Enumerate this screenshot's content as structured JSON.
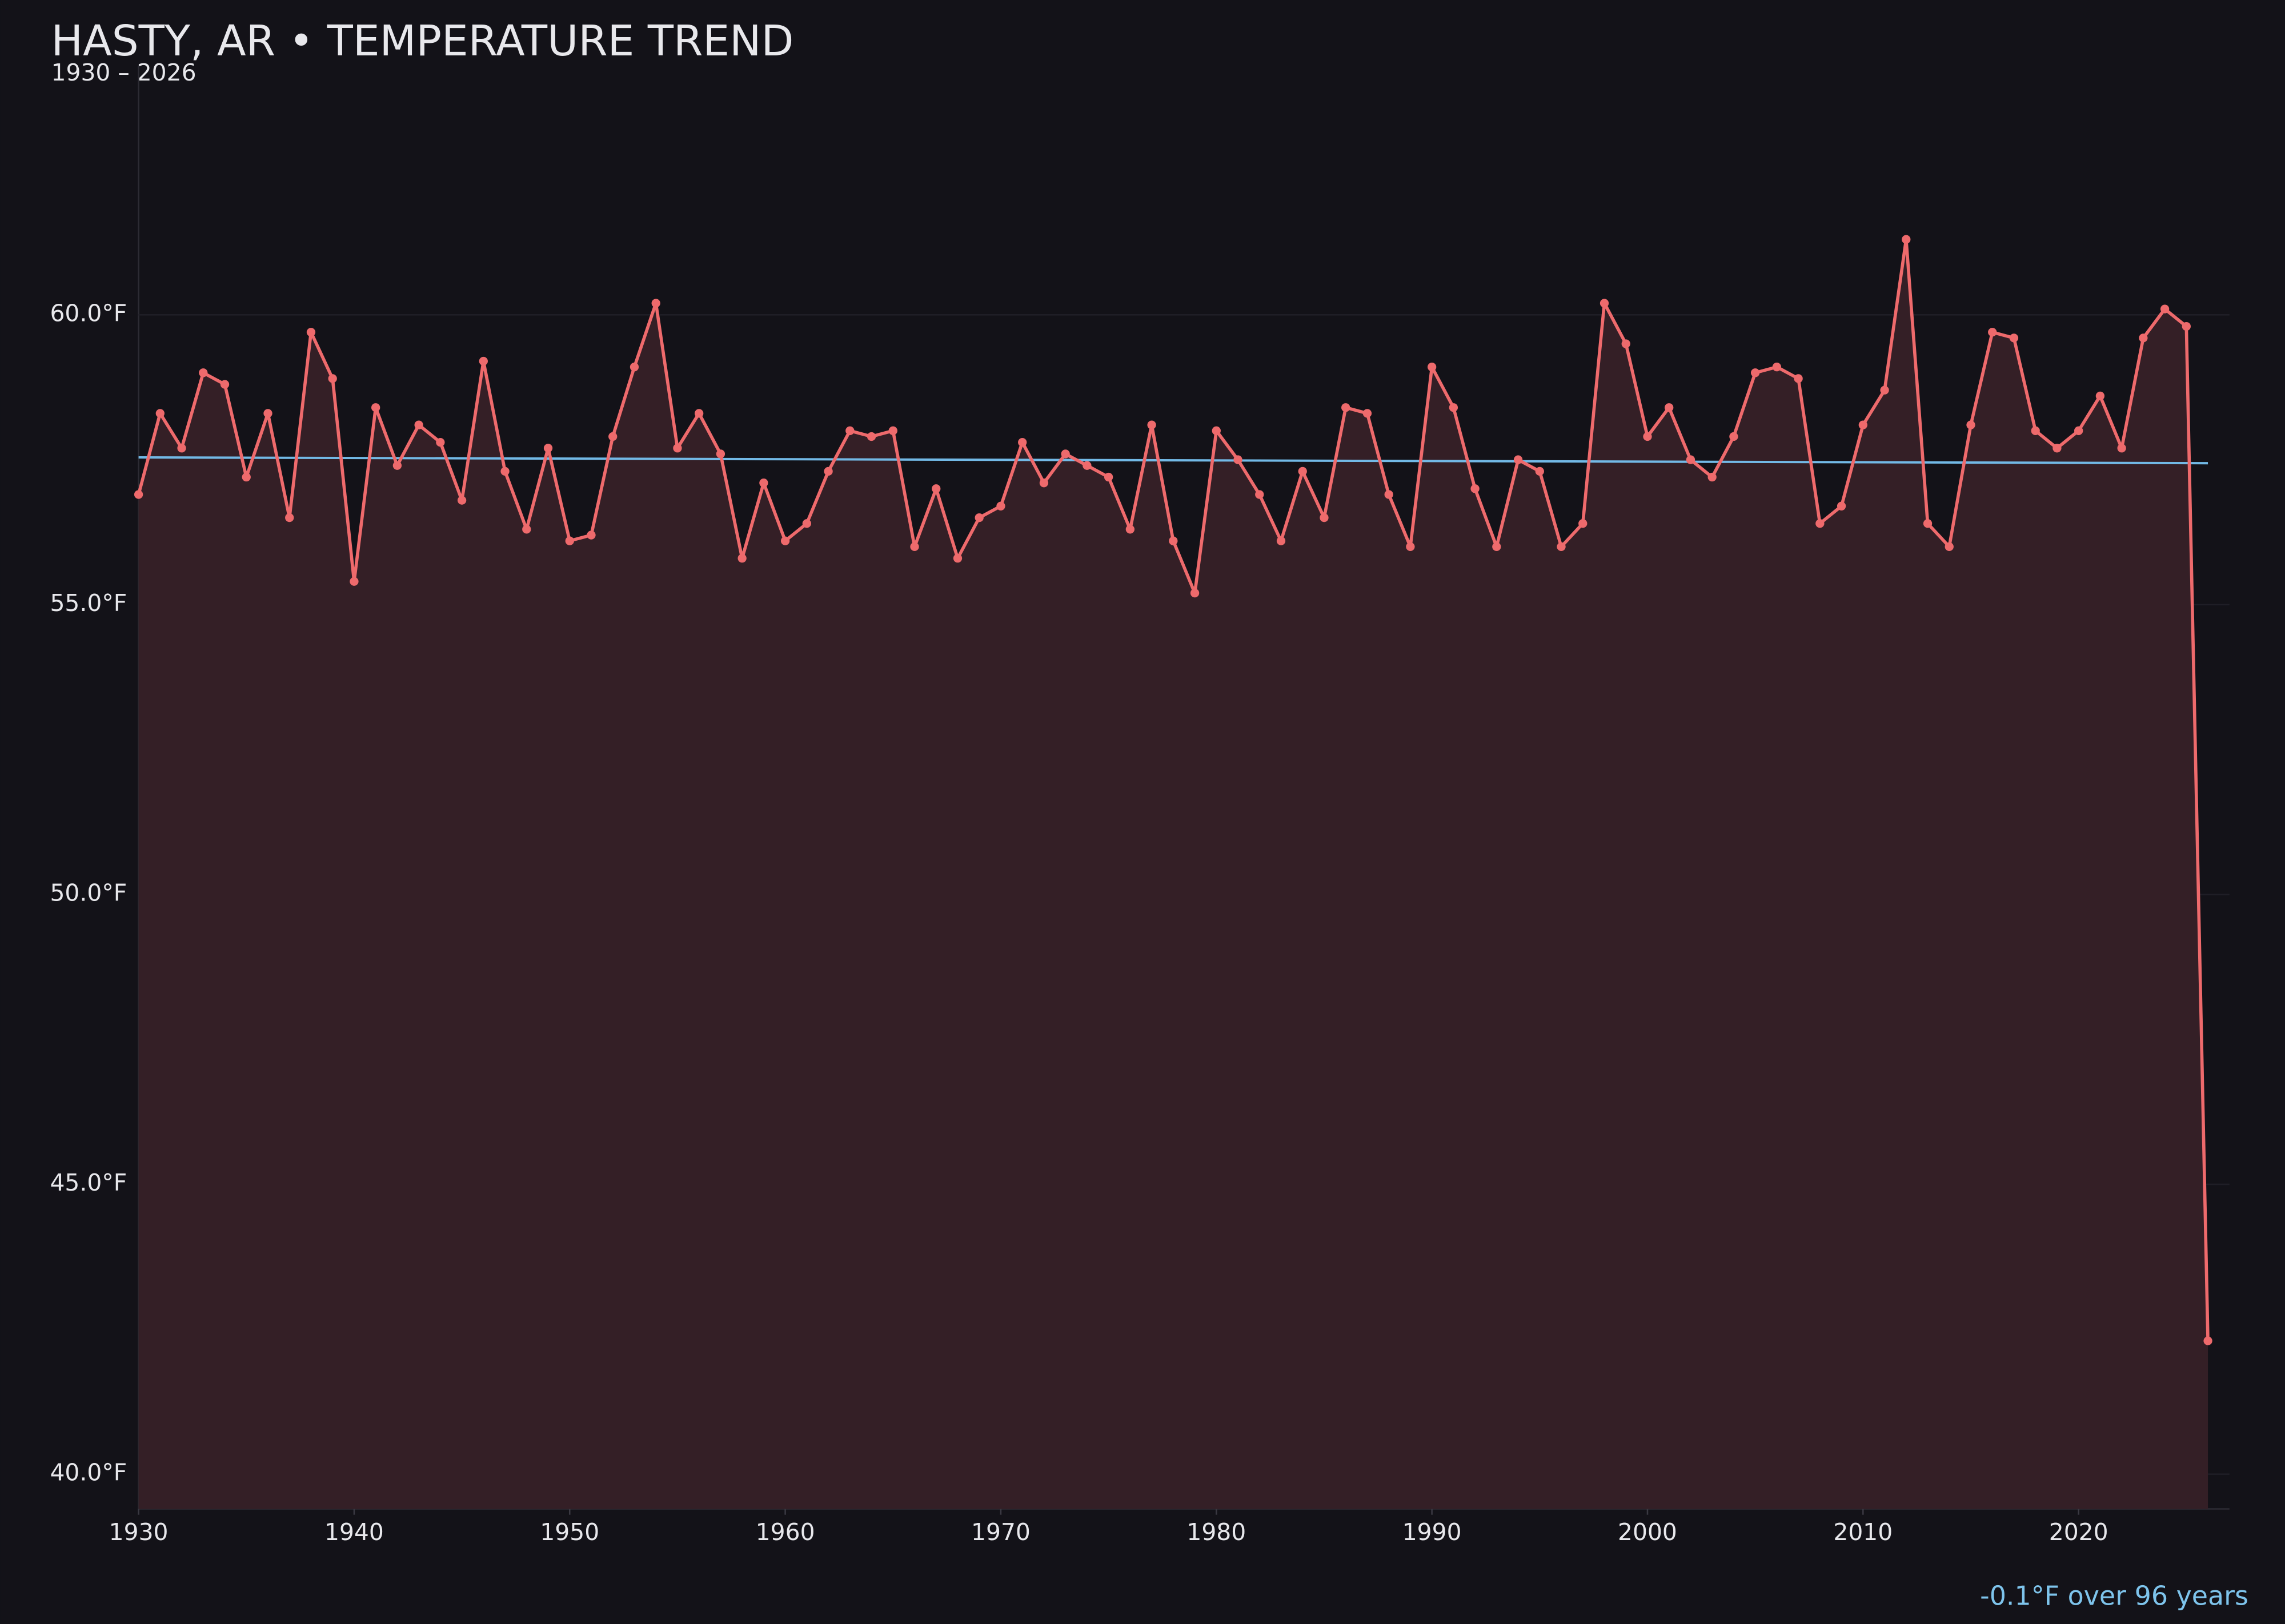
{
  "chart_data": {
    "type": "line",
    "title": "HASTY, AR • TEMPERATURE TREND",
    "subtitle": "1930 – 2026",
    "annotation": "-0.1°F over 96 years",
    "x": [
      1930,
      1931,
      1932,
      1933,
      1934,
      1935,
      1936,
      1937,
      1938,
      1939,
      1940,
      1941,
      1942,
      1943,
      1944,
      1945,
      1946,
      1947,
      1948,
      1949,
      1950,
      1951,
      1952,
      1953,
      1954,
      1955,
      1956,
      1957,
      1958,
      1959,
      1960,
      1961,
      1962,
      1963,
      1964,
      1965,
      1966,
      1967,
      1968,
      1969,
      1970,
      1971,
      1972,
      1973,
      1974,
      1975,
      1976,
      1977,
      1978,
      1979,
      1980,
      1981,
      1982,
      1983,
      1984,
      1985,
      1986,
      1987,
      1988,
      1989,
      1990,
      1991,
      1992,
      1993,
      1994,
      1995,
      1996,
      1997,
      1998,
      1999,
      2000,
      2001,
      2002,
      2003,
      2004,
      2005,
      2006,
      2007,
      2008,
      2009,
      2010,
      2011,
      2012,
      2013,
      2014,
      2015,
      2016,
      2017,
      2018,
      2019,
      2020,
      2021,
      2022,
      2023,
      2024,
      2025,
      2026
    ],
    "series": [
      {
        "color": "#ee6a6c",
        "fill": "#341f26",
        "values": [
          56.9,
          58.3,
          57.7,
          59.0,
          58.8,
          57.2,
          58.3,
          56.5,
          59.7,
          58.9,
          55.4,
          58.4,
          57.4,
          58.1,
          57.8,
          56.8,
          59.2,
          57.3,
          56.3,
          57.7,
          56.1,
          56.2,
          57.9,
          59.1,
          60.2,
          57.7,
          58.3,
          57.6,
          55.8,
          57.1,
          56.1,
          56.4,
          57.3,
          58.0,
          57.9,
          58.0,
          56.0,
          57.0,
          55.8,
          56.5,
          56.7,
          57.8,
          57.1,
          57.6,
          57.4,
          57.2,
          56.3,
          58.1,
          56.1,
          55.2,
          58.0,
          57.5,
          56.9,
          56.1,
          57.3,
          56.5,
          58.4,
          58.3,
          56.9,
          56.0,
          59.1,
          58.4,
          57.0,
          56.0,
          57.5,
          57.3,
          56.0,
          56.4,
          60.2,
          59.5,
          57.9,
          58.4,
          57.5,
          57.2,
          57.9,
          59.0,
          59.1,
          58.9,
          56.4,
          56.7,
          58.1,
          58.7,
          61.3,
          56.4,
          56.0,
          58.1,
          59.7,
          59.6,
          58.0,
          57.7,
          58.0,
          58.6,
          57.7,
          59.6,
          60.1,
          59.8,
          42.3
        ]
      }
    ],
    "trend": {
      "color": "#72b9e6",
      "x": [
        1930,
        2026
      ],
      "values": [
        57.54,
        57.44
      ]
    },
    "xlim": [
      1930,
      2027
    ],
    "ylim": [
      39.4,
      64.3
    ],
    "xticks": [
      1930,
      1940,
      1950,
      1960,
      1970,
      1980,
      1990,
      2000,
      2010,
      2020
    ],
    "yticks": [
      {
        "value": 40,
        "label": "40.0°F"
      },
      {
        "value": 45,
        "label": "45.0°F"
      },
      {
        "value": 50,
        "label": "50.0°F"
      },
      {
        "value": 55,
        "label": "55.0°F"
      },
      {
        "value": 60,
        "label": "60.0°F"
      }
    ],
    "grid": true
  }
}
